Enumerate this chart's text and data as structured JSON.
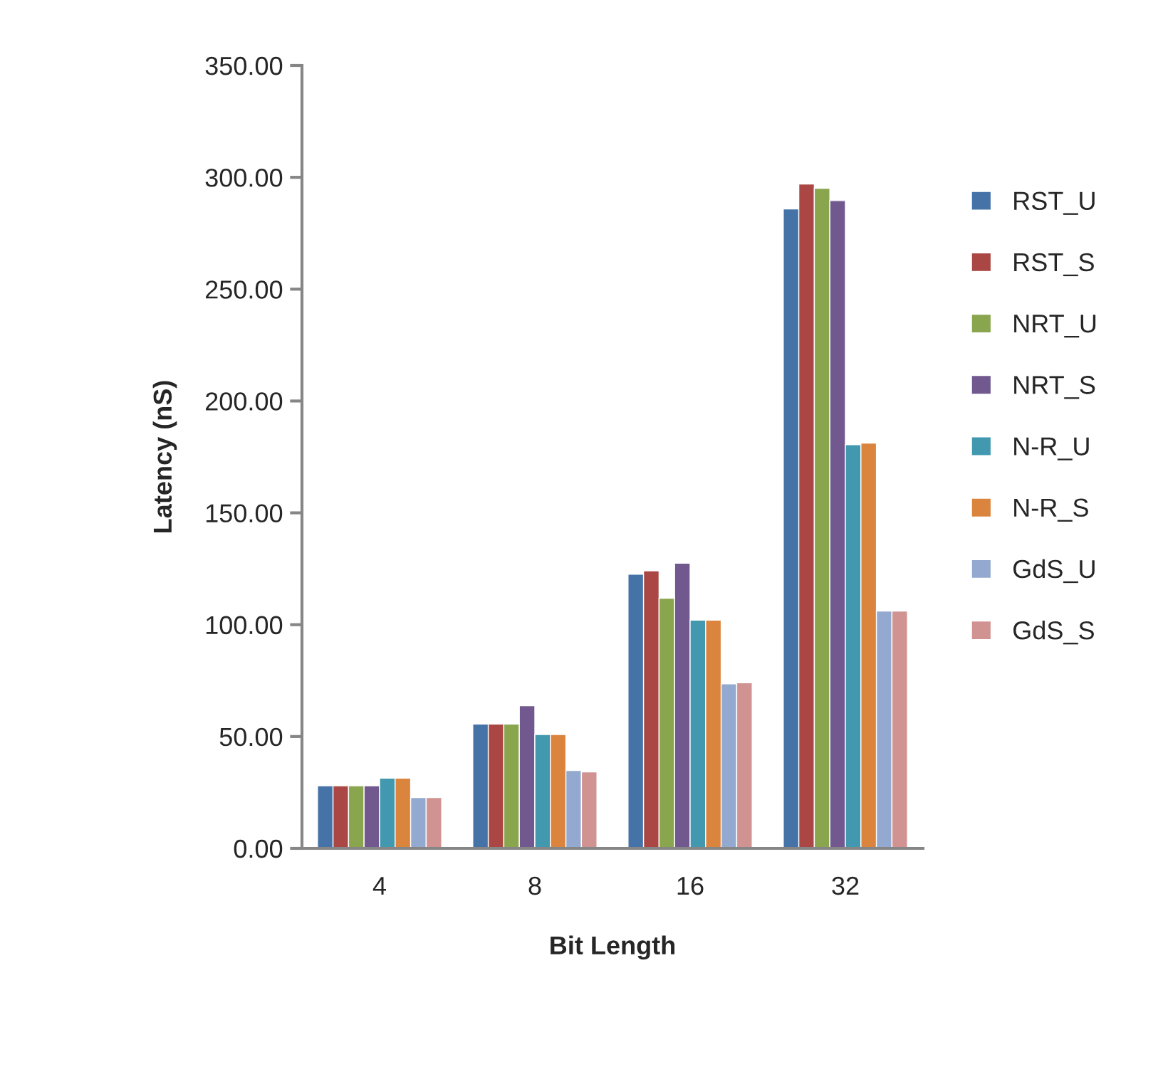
{
  "chart_data": {
    "type": "bar",
    "xlabel": "Bit Length",
    "ylabel": "Latency (nS)",
    "categories": [
      "4",
      "8",
      "16",
      "32"
    ],
    "series": [
      {
        "name": "RST_U",
        "color": "#4572a7",
        "values": [
          28.0,
          55.6,
          122.6,
          285.9
        ]
      },
      {
        "name": "RST_S",
        "color": "#aa4643",
        "values": [
          28.0,
          55.6,
          124.1,
          297.0
        ]
      },
      {
        "name": "NRT_U",
        "color": "#89a54e",
        "values": [
          28.0,
          55.6,
          111.8,
          295.1
        ]
      },
      {
        "name": "NRT_S",
        "color": "#71588f",
        "values": [
          28.0,
          63.8,
          127.5,
          289.6
        ]
      },
      {
        "name": "N-R_U",
        "color": "#4198af",
        "values": [
          31.4,
          50.9,
          102.0,
          180.5
        ]
      },
      {
        "name": "N-R_S",
        "color": "#db843d",
        "values": [
          31.4,
          50.9,
          102.0,
          181.2
        ]
      },
      {
        "name": "GdS_U",
        "color": "#93a9cf",
        "values": [
          22.7,
          34.8,
          73.6,
          106.1
        ]
      },
      {
        "name": "GdS_S",
        "color": "#d19392",
        "values": [
          22.7,
          34.2,
          74.0,
          106.1
        ]
      }
    ],
    "ylim": [
      0,
      350
    ],
    "yticks": [
      {
        "value": 0,
        "label": "0.00"
      },
      {
        "value": 50,
        "label": "50.00"
      },
      {
        "value": 100,
        "label": "100.00"
      },
      {
        "value": 150,
        "label": "150.00"
      },
      {
        "value": 200,
        "label": "200.00"
      },
      {
        "value": 250,
        "label": "250.00"
      },
      {
        "value": 300,
        "label": "300.00"
      },
      {
        "value": 350,
        "label": "350.00"
      }
    ],
    "grid": false,
    "legend": "right"
  }
}
